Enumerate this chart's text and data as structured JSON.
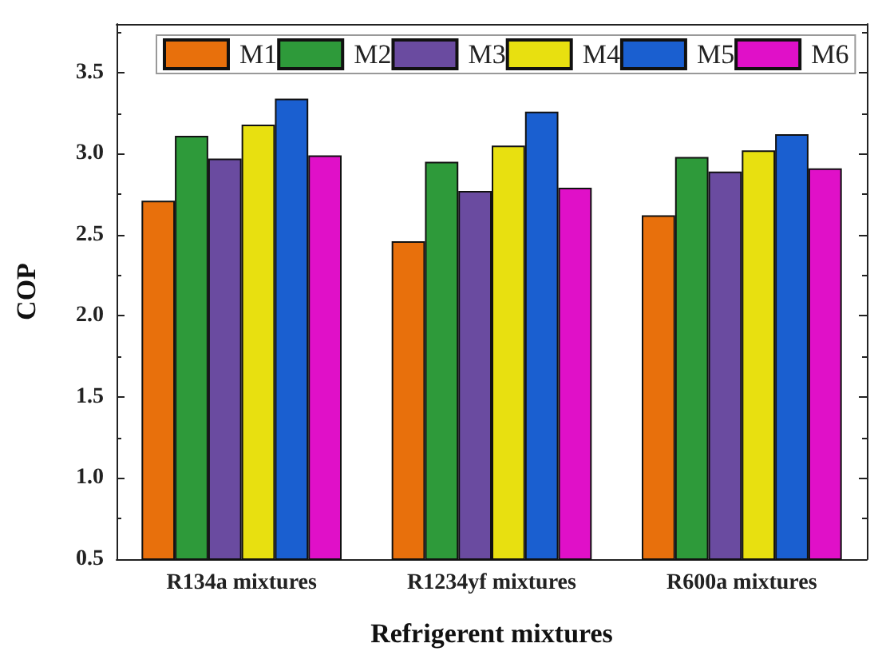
{
  "chart_data": {
    "type": "bar",
    "xlabel": "Refrigerent mixtures",
    "ylabel": "COP",
    "categories": [
      "R134a mixtures",
      "R1234yf mixtures",
      "R600a mixtures"
    ],
    "series": [
      {
        "name": "M1",
        "color": "#e8700c",
        "values": [
          2.71,
          2.46,
          2.62
        ]
      },
      {
        "name": "M2",
        "color": "#2e9a3a",
        "values": [
          3.11,
          2.95,
          2.98
        ]
      },
      {
        "name": "M3",
        "color": "#6a4ba0",
        "values": [
          2.97,
          2.77,
          2.89
        ]
      },
      {
        "name": "M4",
        "color": "#e8e010",
        "values": [
          3.18,
          3.05,
          3.02
        ]
      },
      {
        "name": "M5",
        "color": "#1a5fd0",
        "values": [
          3.34,
          3.26,
          3.12
        ]
      },
      {
        "name": "M6",
        "color": "#e010c8",
        "values": [
          2.99,
          2.79,
          2.91
        ]
      }
    ],
    "ylim": [
      0.5,
      3.8
    ],
    "yticks": [
      {
        "value": 0.5,
        "label": "0.5"
      },
      {
        "value": 1,
        "label": "1.0"
      },
      {
        "value": 1.5,
        "label": "1.5"
      },
      {
        "value": 2,
        "label": "2.0"
      },
      {
        "value": 2.5,
        "label": "2.5"
      },
      {
        "value": 3,
        "label": "3.0"
      },
      {
        "value": 3.5,
        "label": "3.5"
      }
    ],
    "legend": "top",
    "grid": false
  }
}
